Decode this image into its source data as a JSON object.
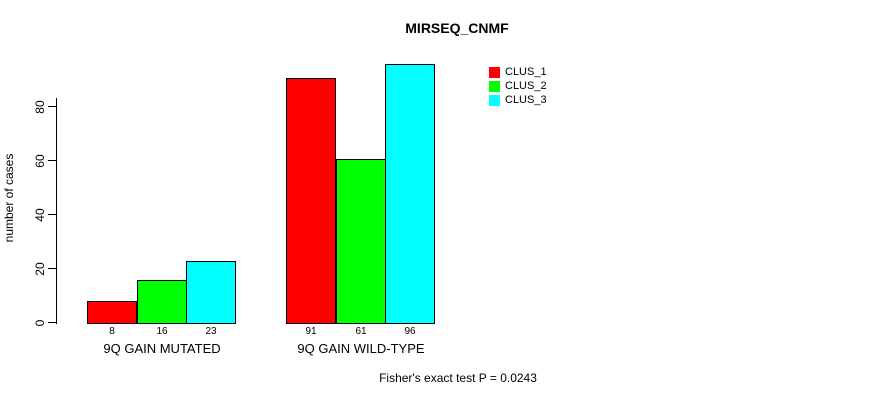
{
  "chart_data": {
    "type": "bar",
    "title": "MIRSEQ_CNMF",
    "ylabel": "number of cases",
    "xlabel": "",
    "categories": [
      "9Q GAIN MUTATED",
      "9Q GAIN WILD-TYPE"
    ],
    "series": [
      {
        "name": "CLUS_1",
        "color": "#ff0000",
        "values": [
          8,
          91
        ]
      },
      {
        "name": "CLUS_2",
        "color": "#00ff00",
        "values": [
          16,
          61
        ]
      },
      {
        "name": "CLUS_3",
        "color": "#00ffff",
        "values": [
          23,
          96
        ]
      }
    ],
    "yticks": [
      0,
      20,
      40,
      60,
      80
    ],
    "ylim": [
      0,
      96
    ],
    "grid": false,
    "legend_position": "top-right",
    "bar_border_color": "#000000",
    "show_value_labels": true,
    "annotation": "Fisher's exact test P = 0.0243"
  }
}
